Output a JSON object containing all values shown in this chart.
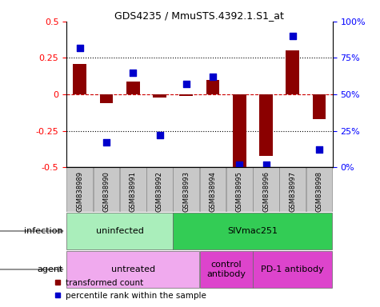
{
  "title": "GDS4235 / MmuSTS.4392.1.S1_at",
  "samples": [
    "GSM838989",
    "GSM838990",
    "GSM838991",
    "GSM838992",
    "GSM838993",
    "GSM838994",
    "GSM838995",
    "GSM838996",
    "GSM838997",
    "GSM838998"
  ],
  "bar_values": [
    0.21,
    -0.06,
    0.09,
    -0.02,
    -0.01,
    0.1,
    -0.5,
    -0.42,
    0.3,
    -0.17
  ],
  "dot_values_pct": [
    82,
    17,
    65,
    22,
    57,
    62,
    2,
    2,
    90,
    12
  ],
  "bar_color": "#8B0000",
  "dot_color": "#0000CC",
  "ylim": [
    -0.5,
    0.5
  ],
  "y2lim": [
    0,
    100
  ],
  "yticks": [
    -0.5,
    -0.25,
    0,
    0.25,
    0.5
  ],
  "ytick_labels": [
    "-0.5",
    "-0.25",
    "0",
    "0.25",
    "0.5"
  ],
  "y2ticks": [
    0,
    25,
    50,
    75,
    100
  ],
  "y2ticklabels": [
    "0%",
    "25%",
    "50%",
    "75%",
    "100%"
  ],
  "hlines_dotted": [
    -0.25,
    0.25
  ],
  "zero_line_color": "#cc0000",
  "infection_groups": [
    {
      "label": "uninfected",
      "start": 0,
      "end": 3,
      "color": "#aaeebb"
    },
    {
      "label": "SIVmac251",
      "start": 4,
      "end": 9,
      "color": "#33cc55"
    }
  ],
  "agent_groups": [
    {
      "label": "untreated",
      "start": 0,
      "end": 4,
      "color": "#f0aaee"
    },
    {
      "label": "control\nantibody",
      "start": 5,
      "end": 6,
      "color": "#dd44cc"
    },
    {
      "label": "PD-1 antibody",
      "start": 7,
      "end": 9,
      "color": "#dd44cc"
    }
  ],
  "infection_label": "infection",
  "agent_label": "agent",
  "legend_bar_label": "transformed count",
  "legend_dot_label": "percentile rank within the sample",
  "sample_box_color": "#C8C8C8"
}
